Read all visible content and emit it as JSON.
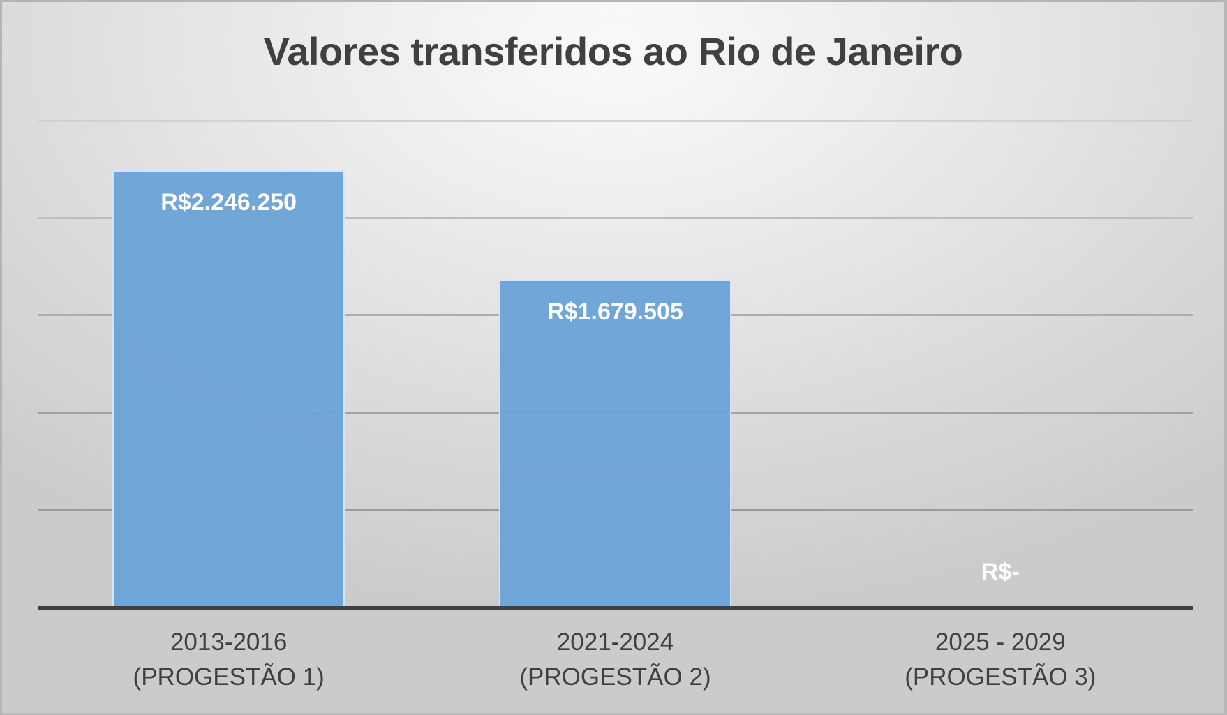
{
  "chart_data": {
    "type": "bar",
    "title": "Valores transferidos ao Rio de Janeiro",
    "xlabel": "",
    "ylabel": "",
    "categories": [
      "2013-2016 (PROGESTÃO 1)",
      "2021-2024 (PROGESTÃO 2)",
      "2025 - 2029 (PROGESTÃO 3)"
    ],
    "values": [
      2246250,
      1679505,
      0
    ],
    "data_labels": [
      "R$2.246.250",
      "R$1.679.505",
      "R$-"
    ],
    "ylim": [
      0,
      2500000
    ],
    "y_gridlines": [
      500000,
      1000000,
      1500000,
      2000000,
      2500000
    ],
    "grid": true,
    "legend": "none",
    "bar_color": "#6FA5D8"
  },
  "title": "Valores transferidos ao Rio de Janeiro",
  "bars": [
    {
      "label": "R$2.246.250",
      "cat_line1": "2013-2016",
      "cat_line2": "(PROGESTÃO 1)"
    },
    {
      "label": "R$1.679.505",
      "cat_line1": "2021-2024",
      "cat_line2": "(PROGESTÃO 2)"
    },
    {
      "label": "R$-",
      "cat_line1": "2025 - 2029",
      "cat_line2": "(PROGESTÃO 3)"
    }
  ],
  "colors": {
    "bar": "#6FA5D8",
    "bar_border": "#D6E6F5",
    "text": "#404040",
    "axis": "#404040",
    "label_text": "#FFFFFF"
  }
}
